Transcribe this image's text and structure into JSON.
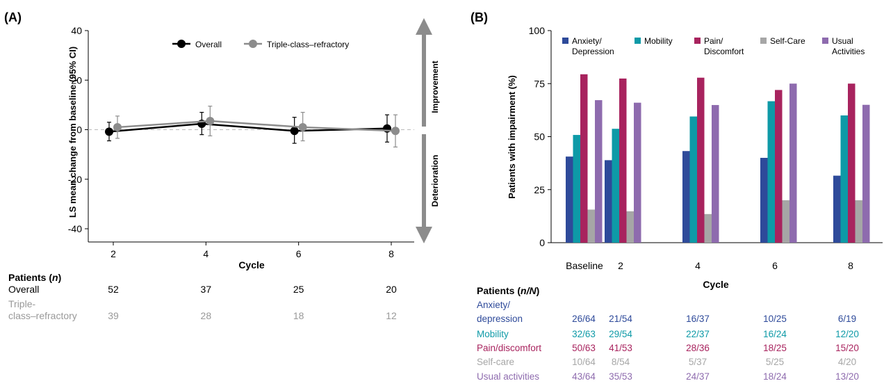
{
  "panel_a": {
    "label": "(A)",
    "ylabel": "LS mean change from baseline (95% CI)",
    "xlabel": "Cycle",
    "improvement_label": "Improvement",
    "deterioration_label": "Deterioration",
    "patients_header": {
      "text": "Patients (",
      "italic": "n",
      "close": ")"
    },
    "patient_rows": [
      {
        "label_lines": [
          "Overall"
        ],
        "color": "#000000",
        "values": [
          "52",
          "37",
          "25",
          "20"
        ]
      },
      {
        "label_lines": [
          "Triple-",
          "class–refractory"
        ],
        "color": "#999999",
        "values": [
          "39",
          "28",
          "18",
          "12"
        ]
      }
    ]
  },
  "panel_b": {
    "label": "(B)",
    "patients_header": {
      "text": "Patients (",
      "italic": "n/N",
      "close": ")"
    },
    "patient_rows": [
      {
        "label_lines": [
          "Anxiety/",
          "depression"
        ],
        "color": "#2E4A9A",
        "values": [
          "26/64",
          "21/54",
          "16/37",
          "10/25",
          "6/19"
        ]
      },
      {
        "label_lines": [
          "Mobility"
        ],
        "color": "#0E9AA7",
        "values": [
          "32/63",
          "29/54",
          "22/37",
          "16/24",
          "12/20"
        ]
      },
      {
        "label_lines": [
          "Pain/discomfort"
        ],
        "color": "#A8235E",
        "values": [
          "50/63",
          "41/53",
          "28/36",
          "18/25",
          "15/20"
        ]
      },
      {
        "label_lines": [
          "Self-care"
        ],
        "color": "#A6A6A6",
        "values": [
          "10/64",
          "8/54",
          "5/37",
          "5/25",
          "4/20"
        ]
      },
      {
        "label_lines": [
          "Usual activities"
        ],
        "color": "#8E6BAE",
        "values": [
          "43/64",
          "35/53",
          "24/37",
          "18/24",
          "13/20"
        ]
      }
    ]
  },
  "chart_data": [
    {
      "type": "line",
      "panel": "A",
      "title": "",
      "xlabel": "Cycle",
      "ylabel": "LS mean change from baseline (95% CI)",
      "x": [
        2,
        4,
        6,
        8
      ],
      "xlim": [
        1,
        9
      ],
      "ylim": [
        -45,
        40
      ],
      "yticks": [
        40,
        20,
        0,
        -20,
        -40
      ],
      "ytick_labels": [
        "40",
        "20",
        "0",
        "-20",
        "-40"
      ],
      "xticks": [
        2,
        4,
        6,
        8
      ],
      "reference_line": 0,
      "grid": false,
      "legend_position": "top-center",
      "series": [
        {
          "name": "Overall",
          "color": "#000000",
          "values": [
            -0.8,
            2.4,
            -0.5,
            0.5
          ],
          "ci_low": [
            -4.5,
            -2.0,
            -5.5,
            -5.0
          ],
          "ci_high": [
            3.0,
            7.0,
            5.0,
            6.0
          ]
        },
        {
          "name": "Triple-class–refractory",
          "color": "#8C8C8C",
          "values": [
            1.0,
            3.5,
            1.0,
            -0.5
          ],
          "ci_low": [
            -3.5,
            -2.5,
            -4.5,
            -7.0
          ],
          "ci_high": [
            5.5,
            9.5,
            7.0,
            6.0
          ]
        }
      ]
    },
    {
      "type": "bar",
      "panel": "B",
      "title": "",
      "xlabel": "Cycle",
      "ylabel": "Patients with impairment (%)",
      "categories": [
        "Baseline",
        "2",
        "4",
        "6",
        "8"
      ],
      "ylim": [
        0,
        100
      ],
      "yticks": [
        0,
        25,
        50,
        75,
        100
      ],
      "ytick_labels": [
        "0",
        "25",
        "50",
        "75",
        "100"
      ],
      "grid": false,
      "legend_position": "top",
      "series": [
        {
          "name": "Anxiety/ Depression",
          "legend_lines": [
            "Anxiety/",
            "Depression"
          ],
          "color": "#2E4A9A",
          "values": [
            40.6,
            38.9,
            43.2,
            40.0,
            31.6
          ]
        },
        {
          "name": "Mobility",
          "legend_lines": [
            "Mobility"
          ],
          "color": "#0E9AA7",
          "values": [
            50.8,
            53.7,
            59.5,
            66.7,
            60.0
          ]
        },
        {
          "name": "Pain/ Discomfort",
          "legend_lines": [
            "Pain/",
            "Discomfort"
          ],
          "color": "#A8235E",
          "values": [
            79.4,
            77.4,
            77.8,
            72.0,
            75.0
          ]
        },
        {
          "name": "Self-Care",
          "legend_lines": [
            "Self-Care"
          ],
          "color": "#A6A6A6",
          "values": [
            15.6,
            14.8,
            13.5,
            20.0,
            20.0
          ]
        },
        {
          "name": "Usual Activities",
          "legend_lines": [
            "Usual",
            "Activities"
          ],
          "color": "#8E6BAE",
          "values": [
            67.2,
            66.0,
            64.9,
            75.0,
            65.0
          ]
        }
      ]
    }
  ]
}
